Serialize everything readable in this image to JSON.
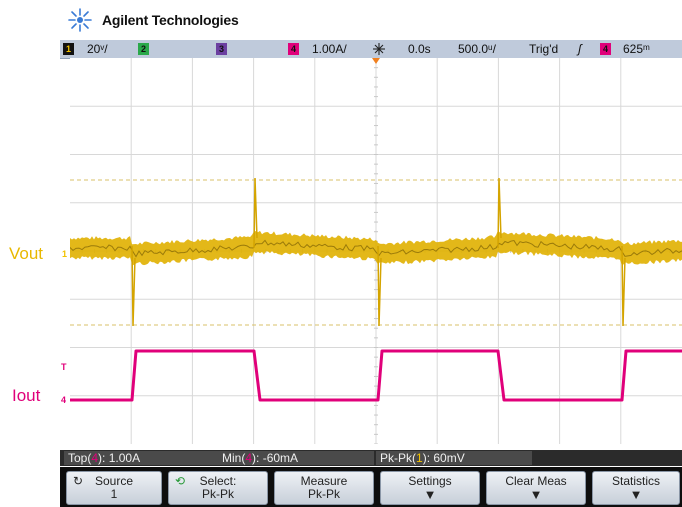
{
  "brand": {
    "name": "Agilent Technologies"
  },
  "topbar": {
    "channels": [
      {
        "num": "1",
        "scale": "20ᵛ/",
        "color": "#f2c200"
      },
      {
        "num": "2",
        "scale": "",
        "color": "#2aa84a"
      },
      {
        "num": "3",
        "scale": "",
        "color": "#6b3fa0"
      },
      {
        "num": "4",
        "scale": "1.00A/",
        "color": "#e0007a"
      }
    ],
    "delay": "0.0s",
    "timebase": "500.0ᵘ/",
    "trigger_status": "Trig'd",
    "trigger_slope": "ʃ",
    "trigger_source": "4",
    "trigger_level": "625ᵐ"
  },
  "labels": {
    "vout": "Vout",
    "iout": "Iout"
  },
  "markers": {
    "vout_marker": "1",
    "iout_marker": "4"
  },
  "measurements": {
    "top": {
      "label": "Top",
      "channel": "4",
      "value": "): 1.00A"
    },
    "min": {
      "label": "Min",
      "channel": "4",
      "value": "): -60mA"
    },
    "pkpk": {
      "label": "Pk-Pk",
      "channel": "1",
      "value": "): 60mV"
    }
  },
  "softkeys": {
    "source": {
      "line1": "Source",
      "line2": "1"
    },
    "select": {
      "line1": "Select:",
      "line2": "Pk-Pk"
    },
    "measure": {
      "line1": "Measure",
      "line2": "Pk-Pk"
    },
    "settings": {
      "line1": "Settings"
    },
    "clear_meas": {
      "line1": "Clear Meas"
    },
    "statistics": {
      "line1": "Statistics"
    }
  },
  "colors": {
    "ch1": "#f2c200",
    "ch4": "#e0007a",
    "vout_label": "#e8b800",
    "iout_label": "#e0007a",
    "grid": "#d8d8d8"
  }
}
